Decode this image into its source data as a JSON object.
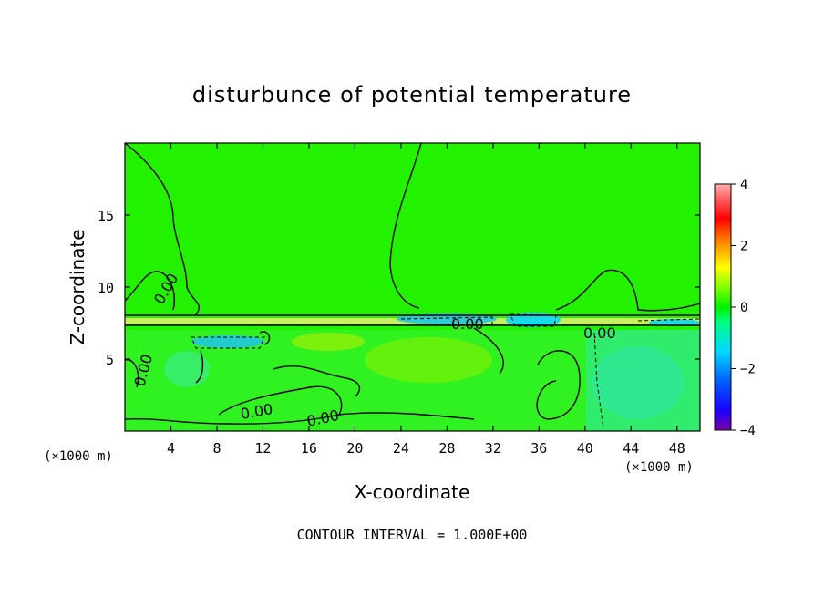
{
  "chart_data": {
    "type": "heatmap",
    "title": "disturbunce of potential temperature",
    "xlabel": "X-coordinate",
    "ylabel": "Z-coordinate",
    "x_unit": "(×1000 m)",
    "x_unit_right": "(×1000 m)",
    "xlim": [
      0,
      50
    ],
    "ylim": [
      0,
      20
    ],
    "x_ticks": [
      4,
      8,
      12,
      16,
      20,
      24,
      28,
      32,
      36,
      40,
      44,
      48
    ],
    "y_ticks": [
      5,
      10,
      15
    ],
    "colorbar": {
      "range": [
        -4,
        4
      ],
      "ticks": [
        4,
        2,
        0,
        -2,
        -4
      ]
    },
    "contour_labels": [
      "0.00",
      "0.00",
      "0.00",
      "0.00",
      "0.00",
      "0.00"
    ],
    "footer": "CONTOUR INTERVAL = 1.000E+00"
  }
}
